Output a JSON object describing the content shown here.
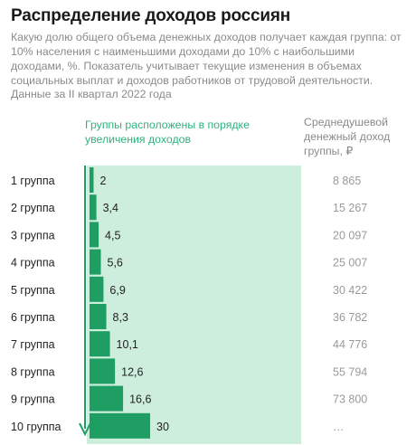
{
  "header": {
    "title": "Распределение доходов россиян",
    "description": "Какую долю общего объема денежных доходов получает каждая группа: от 10% населения с наименьшими доходами до 10% с наибольшими доходами, %. Показатель учитывает текущие изменения в объемах социальных выплат и доходов работников от трудовой деятельности.",
    "source": "Данные за II квартал 2022 года"
  },
  "columns": {
    "left_header": "Группы расположены в порядке увеличения доходов",
    "right_header": "Среднедушевой денежный доход группы, ₽"
  },
  "colors": {
    "bar_dark": "#1e9e62",
    "band_light": "#cdeedd",
    "accent_text": "#2fb27a"
  },
  "chart_data": {
    "type": "bar",
    "orientation": "horizontal",
    "categories": [
      "1 группа",
      "2 группа",
      "3 группа",
      "4 группа",
      "5 группа",
      "6 группа",
      "7 группа",
      "8 группа",
      "9 группа",
      "10 группа"
    ],
    "series": [
      {
        "values": [
          2,
          3.4,
          4.5,
          5.6,
          6.9,
          8.3,
          10.1,
          12.6,
          16.6,
          30
        ],
        "value_labels": [
          "2",
          "3,4",
          "4,5",
          "5,6",
          "6,9",
          "8,3",
          "10,1",
          "12,6",
          "16,6",
          "30"
        ]
      }
    ],
    "income_labels": [
      "8 865",
      "15 267",
      "20 097",
      "25 007",
      "30 422",
      "36 782",
      "44 776",
      "55 794",
      "73 800",
      "…"
    ],
    "xlabel": "",
    "ylabel": "",
    "xlim": [
      0,
      30
    ]
  }
}
